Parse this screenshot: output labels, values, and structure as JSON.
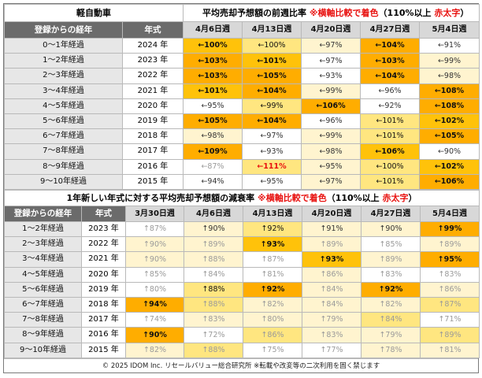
{
  "table1": {
    "category": "軽自動車",
    "title_main": "平均売却予想額の前週比率",
    "title_note": "※横軸比較で着色",
    "title_paren_open": "（110%以上",
    "title_red": "赤太字",
    "title_paren_close": "）",
    "col_age": "登録からの経年",
    "col_year": "年式",
    "weeks": [
      "4月6日週",
      "4月13日週",
      "4月20日週",
      "4月27日週",
      "5月4日週"
    ],
    "rows": [
      {
        "age": "0～1年経過",
        "year": "2024 年",
        "cells": [
          {
            "t": "←100%",
            "c": "c4"
          },
          {
            "t": "←100%",
            "c": "c3"
          },
          {
            "t": "←97%",
            "c": "c2"
          },
          {
            "t": "←104%",
            "c": "c5"
          },
          {
            "t": "←91%",
            "c": "c1"
          }
        ]
      },
      {
        "age": "1～2年経過",
        "year": "2023 年",
        "cells": [
          {
            "t": "←103%",
            "c": "c5"
          },
          {
            "t": "←101%",
            "c": "c4"
          },
          {
            "t": "←97%",
            "c": "c1"
          },
          {
            "t": "←103%",
            "c": "c5"
          },
          {
            "t": "←99%",
            "c": "c2"
          }
        ]
      },
      {
        "age": "2～3年経過",
        "year": "2022 年",
        "cells": [
          {
            "t": "←103%",
            "c": "c5"
          },
          {
            "t": "←105%",
            "c": "c5"
          },
          {
            "t": "←93%",
            "c": "c1"
          },
          {
            "t": "←104%",
            "c": "c5"
          },
          {
            "t": "←98%",
            "c": "c2"
          }
        ]
      },
      {
        "age": "3～4年経過",
        "year": "2021 年",
        "cells": [
          {
            "t": "←101%",
            "c": "c4"
          },
          {
            "t": "←104%",
            "c": "c5"
          },
          {
            "t": "←99%",
            "c": "c2"
          },
          {
            "t": "←96%",
            "c": "c1"
          },
          {
            "t": "←108%",
            "c": "c5"
          }
        ]
      },
      {
        "age": "4～5年経過",
        "year": "2020 年",
        "cells": [
          {
            "t": "←95%",
            "c": "c1"
          },
          {
            "t": "←99%",
            "c": "c3"
          },
          {
            "t": "←106%",
            "c": "c5"
          },
          {
            "t": "←92%",
            "c": "c1"
          },
          {
            "t": "←108%",
            "c": "c5"
          }
        ]
      },
      {
        "age": "5～6年経過",
        "year": "2019 年",
        "cells": [
          {
            "t": "←105%",
            "c": "c5"
          },
          {
            "t": "←104%",
            "c": "c5"
          },
          {
            "t": "←96%",
            "c": "c1"
          },
          {
            "t": "←101%",
            "c": "c3"
          },
          {
            "t": "←102%",
            "c": "c4"
          }
        ]
      },
      {
        "age": "6～7年経過",
        "year": "2018 年",
        "cells": [
          {
            "t": "←98%",
            "c": "c2"
          },
          {
            "t": "←97%",
            "c": "c1"
          },
          {
            "t": "←99%",
            "c": "c2"
          },
          {
            "t": "←101%",
            "c": "c3"
          },
          {
            "t": "←105%",
            "c": "c5"
          }
        ]
      },
      {
        "age": "7～8年経過",
        "year": "2017 年",
        "cells": [
          {
            "t": "←109%",
            "c": "c5"
          },
          {
            "t": "←93%",
            "c": "c1"
          },
          {
            "t": "←98%",
            "c": "c2"
          },
          {
            "t": "←106%",
            "c": "c4"
          },
          {
            "t": "←90%",
            "c": "c1"
          }
        ]
      },
      {
        "age": "8～9年経過",
        "year": "2016 年",
        "cells": [
          {
            "t": "←87%",
            "c": "c1 faint"
          },
          {
            "t": "←111%",
            "c": "cr"
          },
          {
            "t": "←95%",
            "c": "c2"
          },
          {
            "t": "←100%",
            "c": "c3"
          },
          {
            "t": "←102%",
            "c": "c4"
          }
        ]
      },
      {
        "age": "9～10年経過",
        "year": "2015 年",
        "cells": [
          {
            "t": "←94%",
            "c": "c1"
          },
          {
            "t": "←95%",
            "c": "c1"
          },
          {
            "t": "←97%",
            "c": "c2"
          },
          {
            "t": "←101%",
            "c": "c3"
          },
          {
            "t": "←106%",
            "c": "c5"
          }
        ]
      }
    ]
  },
  "table2": {
    "title_main": "1年新しい年式に対する平均売却予想額の減衰率",
    "title_note": "※横軸比較で着色",
    "title_paren_open": "（110%以上",
    "title_red": "赤太字",
    "title_paren_close": "）",
    "col_age": "登録からの経年",
    "col_year": "年式",
    "weeks": [
      "3月30日週",
      "4月6日週",
      "4月13日週",
      "4月20日週",
      "4月27日週",
      "5月4日週"
    ],
    "rows": [
      {
        "age": "1～2年経過",
        "year": "2023 年",
        "cells": [
          {
            "t": "↑87%",
            "c": "c1 faint"
          },
          {
            "t": "↑90%",
            "c": "c2"
          },
          {
            "t": "↑92%",
            "c": "c3"
          },
          {
            "t": "↑91%",
            "c": "c2"
          },
          {
            "t": "↑90%",
            "c": "c2"
          },
          {
            "t": "↑99%",
            "c": "c5"
          }
        ]
      },
      {
        "age": "2～3年経過",
        "year": "2022 年",
        "cells": [
          {
            "t": "↑90%",
            "c": "c2 faint"
          },
          {
            "t": "↑89%",
            "c": "c2 faint"
          },
          {
            "t": "↑93%",
            "c": "c4"
          },
          {
            "t": "↑89%",
            "c": "c2 faint"
          },
          {
            "t": "↑85%",
            "c": "c1 faint"
          },
          {
            "t": "↑89%",
            "c": "c2 faint"
          }
        ]
      },
      {
        "age": "3～4年経過",
        "year": "2021 年",
        "cells": [
          {
            "t": "↑90%",
            "c": "c2 faint"
          },
          {
            "t": "↑88%",
            "c": "c2 faint"
          },
          {
            "t": "↑87%",
            "c": "c1 faint"
          },
          {
            "t": "↑93%",
            "c": "c4"
          },
          {
            "t": "↑89%",
            "c": "c2 faint"
          },
          {
            "t": "↑95%",
            "c": "c5"
          }
        ]
      },
      {
        "age": "4～5年経過",
        "year": "2020 年",
        "cells": [
          {
            "t": "↑85%",
            "c": "c1 faint"
          },
          {
            "t": "↑84%",
            "c": "c1 faint"
          },
          {
            "t": "↑81%",
            "c": "c1 faint"
          },
          {
            "t": "↑86%",
            "c": "c2 faint"
          },
          {
            "t": "↑83%",
            "c": "c1 faint"
          },
          {
            "t": "↑83%",
            "c": "c1 faint"
          }
        ]
      },
      {
        "age": "5～6年経過",
        "year": "2019 年",
        "cells": [
          {
            "t": "↑80%",
            "c": "c1 faint"
          },
          {
            "t": "↑88%",
            "c": "c3"
          },
          {
            "t": "↑92%",
            "c": "c5"
          },
          {
            "t": "↑84%",
            "c": "c2 faint"
          },
          {
            "t": "↑92%",
            "c": "c5"
          },
          {
            "t": "↑86%",
            "c": "c2 faint"
          }
        ]
      },
      {
        "age": "6～7年経過",
        "year": "2018 年",
        "cells": [
          {
            "t": "↑94%",
            "c": "c5"
          },
          {
            "t": "↑88%",
            "c": "c3 faint"
          },
          {
            "t": "↑82%",
            "c": "c2 faint"
          },
          {
            "t": "↑84%",
            "c": "c2 faint"
          },
          {
            "t": "↑82%",
            "c": "c2 faint"
          },
          {
            "t": "↑87%",
            "c": "c3 faint"
          }
        ]
      },
      {
        "age": "7～8年経過",
        "year": "2017 年",
        "cells": [
          {
            "t": "↑74%",
            "c": "c1 faint"
          },
          {
            "t": "↑83%",
            "c": "c2 faint"
          },
          {
            "t": "↑80%",
            "c": "c2 faint"
          },
          {
            "t": "↑79%",
            "c": "c2 faint"
          },
          {
            "t": "↑84%",
            "c": "c3 faint"
          },
          {
            "t": "↑71%",
            "c": "c1 faint"
          }
        ]
      },
      {
        "age": "8～9年経過",
        "year": "2016 年",
        "cells": [
          {
            "t": "↑90%",
            "c": "c5"
          },
          {
            "t": "↑72%",
            "c": "c1 faint"
          },
          {
            "t": "↑86%",
            "c": "c3 faint"
          },
          {
            "t": "↑83%",
            "c": "c2 faint"
          },
          {
            "t": "↑79%",
            "c": "c2 faint"
          },
          {
            "t": "↑89%",
            "c": "c3 faint"
          }
        ]
      },
      {
        "age": "9～10年経過",
        "year": "2015 年",
        "cells": [
          {
            "t": "↑82%",
            "c": "c2 faint"
          },
          {
            "t": "↑88%",
            "c": "c3 faint"
          },
          {
            "t": "↑75%",
            "c": "c1 faint"
          },
          {
            "t": "↑77%",
            "c": "c1 faint"
          },
          {
            "t": "↑78%",
            "c": "c2 faint"
          },
          {
            "t": "↑81%",
            "c": "c2 faint"
          }
        ]
      }
    ]
  },
  "footer": "© 2025 IDOM Inc. リセールバリュー総合研究所 ※転載や改変等の二次利用を固く禁じます"
}
